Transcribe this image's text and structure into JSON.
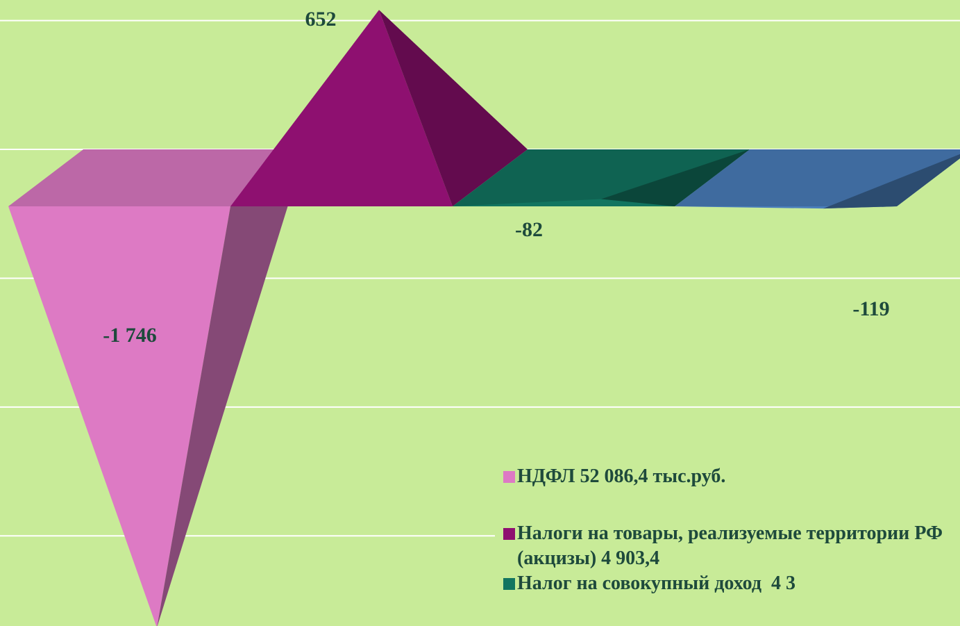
{
  "chart_data": {
    "type": "pyramid",
    "series": [
      {
        "name": "НДФЛ 52 086,4 тыс.руб.",
        "color": "#dd7ac4",
        "values": [
          -1746
        ],
        "value_labels": [
          "-1 746"
        ]
      },
      {
        "name": "Налоги на товары, реализуемые территории РФ (акцизы) 4 903,4",
        "color": "#8e1070",
        "values": [
          652
        ]
      },
      {
        "name": "Налог на совокупный доход  4 3",
        "color": "#127560",
        "values": [
          -82
        ]
      },
      {
        "name": null,
        "color": "#4a7ebb",
        "values": [
          -119
        ]
      }
    ],
    "ylim": [
      -1850,
      580
    ],
    "yticks": [
      -1500,
      -1000,
      -500,
      0,
      500
    ],
    "grid": true
  }
}
